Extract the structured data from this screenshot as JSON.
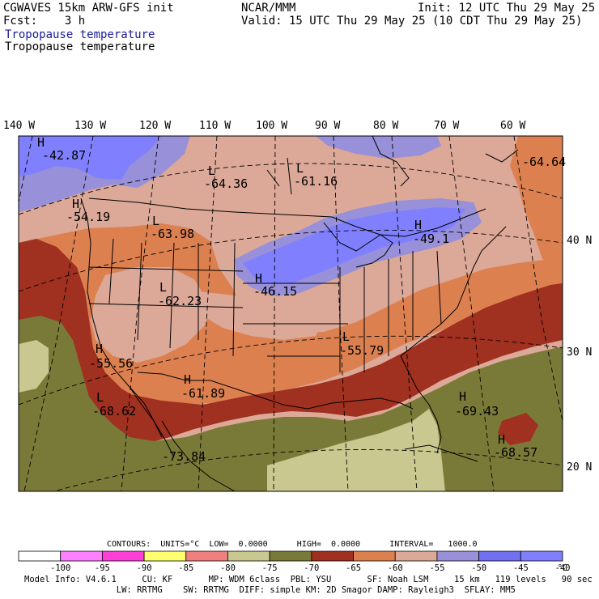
{
  "header": {
    "model": "CGWAVES 15km ARW-GFS init",
    "org": "NCAR/MMM",
    "init": "Init: 12 UTC Thu 29 May 25",
    "fcst": "Fcst:    3 h",
    "valid": "Valid: 15 UTC Thu 29 May 25 (10 CDT Thu 29 May 25)",
    "field1": "Tropopause temperature",
    "field2": "Tropopause temperature"
  },
  "axes": {
    "top_ticks": [
      "140 W",
      "130 W",
      "120 W",
      "110 W",
      "100 W",
      "90 W",
      "80 W",
      "70 W",
      "60 W"
    ],
    "right_ticks": [
      "40 N",
      "30 N",
      "20 N"
    ]
  },
  "labels": [
    {
      "sym": "H",
      "val": "-42.87"
    },
    {
      "sym": "L",
      "val": "-64.36"
    },
    {
      "sym": "L",
      "val": "-61.16"
    },
    {
      "sym": "",
      "val": "-64.64"
    },
    {
      "sym": "H",
      "val": "-54.19"
    },
    {
      "sym": "L",
      "val": "-63.98"
    },
    {
      "sym": "H",
      "val": "-49.1"
    },
    {
      "sym": "H",
      "val": "-46.15"
    },
    {
      "sym": "L",
      "val": "-62.23"
    },
    {
      "sym": "H",
      "val": "-55.56"
    },
    {
      "sym": "L",
      "val": "-55.79"
    },
    {
      "sym": "H",
      "val": "-61.89"
    },
    {
      "sym": "L",
      "val": "-68.62"
    },
    {
      "sym": "H",
      "val": "-69.43"
    },
    {
      "sym": "H",
      "val": "-68.57"
    },
    {
      "sym": "",
      "val": "-73.84"
    }
  ],
  "contours": {
    "units_label": "CONTOURS:  UNITS=°C  LOW=  0.0000      HIGH=  0.0000      INTERVAL=   1000.0"
  },
  "colorbar": {
    "bins": [
      {
        "color": "#ffffff"
      },
      {
        "color": "#ff80ff"
      },
      {
        "color": "#ff40d8"
      },
      {
        "color": "#ffff70"
      },
      {
        "color": "#f08080"
      },
      {
        "color": "#c8c890"
      },
      {
        "color": "#7a7a38"
      },
      {
        "color": "#a03020"
      },
      {
        "color": "#dc8050"
      },
      {
        "color": "#dca898"
      },
      {
        "color": "#9890d8"
      },
      {
        "color": "#7070f0"
      },
      {
        "color": "#8080ff"
      }
    ],
    "ticks": [
      "-100",
      "-95",
      "-90",
      "-85",
      "-80",
      "-75",
      "-70",
      "-65",
      "-60",
      "-55",
      "-50",
      "-45",
      "-40"
    ],
    "unit": "°C"
  },
  "footer": {
    "line1": "Model Info: V4.6.1     CU: KF       MP: WDM 6class  PBL: YSU       SF: Noah LSM     15 km   119 levels   90 sec",
    "line2": "                  LW: RRTMG    SW: RRTMG  DIFF: simple KM: 2D Smagor DAMP: Rayleigh3  SFLAY: MM5"
  },
  "field_colors": {
    "c_m45": "#8080ff",
    "c_m50": "#9890d8",
    "c_m55": "#dca898",
    "c_m60": "#dc8050",
    "c_m65": "#a03020",
    "c_m70": "#7a7a38",
    "c_m75": "#c8c890"
  }
}
